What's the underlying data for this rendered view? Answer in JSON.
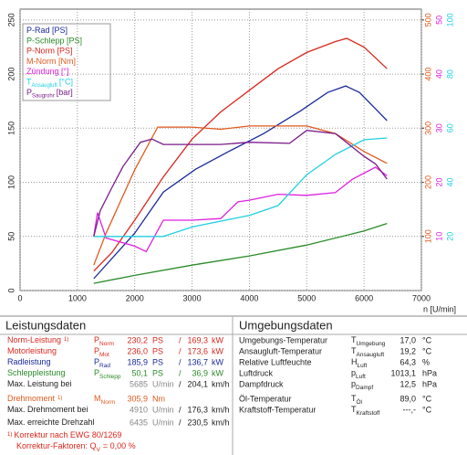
{
  "chart_data": {
    "type": "line",
    "x_label": "n [U/min]",
    "xlim": [
      0,
      7000
    ],
    "xticks": [
      0,
      1000,
      2000,
      3000,
      4000,
      5000,
      6000,
      7000
    ],
    "ylim": [
      0,
      260
    ],
    "yticks": [
      0,
      50,
      100,
      150,
      200,
      250
    ],
    "y2lim": [
      0,
      520
    ],
    "y2ticks": [
      100,
      200,
      300,
      400,
      500
    ],
    "y2color": "#e05a1e",
    "y3lim": [
      0,
      52
    ],
    "y3ticks": [
      10,
      20,
      30,
      40,
      50
    ],
    "y3color": "#e020e0",
    "y4lim": [
      0,
      104
    ],
    "y4ticks": [
      20,
      40,
      60,
      80,
      100
    ],
    "y4color": "#20d0e0",
    "y5lim": [
      0,
      2.6
    ],
    "grid": true,
    "series": [
      {
        "name": "P-Rad [PS]",
        "color": "#1a2a9a",
        "axis": "y",
        "x": [
          1285,
          2000,
          2500,
          3060,
          3620,
          4250,
          4890,
          5365,
          5680,
          5920,
          6160,
          6400
        ],
        "values": [
          11,
          53,
          91,
          112,
          128,
          145,
          166,
          183,
          189,
          183,
          170,
          157
        ]
      },
      {
        "name": "P-Schlepp [PS]",
        "color": "#2a8a2a",
        "axis": "y",
        "x": [
          1285,
          2000,
          3000,
          4000,
          5000,
          6000,
          6400
        ],
        "values": [
          6.7,
          14,
          23.5,
          32,
          42,
          55,
          62
        ]
      },
      {
        "name": "P-Norm [PS]",
        "color": "#d8281e",
        "axis": "y",
        "x": [
          1285,
          1600,
          2000,
          2500,
          3000,
          3500,
          4000,
          4500,
          5000,
          5500,
          5700,
          6000,
          6200,
          6400
        ],
        "values": [
          18,
          35,
          65,
          105,
          140,
          165,
          185,
          205,
          220,
          230,
          233,
          225,
          215,
          205
        ]
      },
      {
        "name": "M-Norm [Nm]",
        "color": "#e05a1e",
        "axis": "y2",
        "x": [
          1285,
          1500,
          2000,
          2400,
          3000,
          3500,
          4000,
          5000,
          5500,
          6000,
          6400
        ],
        "values": [
          47,
          106,
          223,
          302,
          302,
          298,
          304,
          304,
          290,
          257,
          235
        ]
      },
      {
        "name": "Zündung [°]",
        "color": "#e020e0",
        "axis": "y3",
        "x": [
          1285,
          1350,
          1500,
          2000,
          2200,
          2500,
          3000,
          3500,
          3800,
          4000,
          4500,
          5000,
          5500,
          5800,
          6200,
          6400
        ],
        "values": [
          10,
          14.4,
          9.7,
          8.2,
          7.2,
          13,
          13,
          13.3,
          16.4,
          16.7,
          17.8,
          17.6,
          18.1,
          20.6,
          22.8,
          21.2
        ]
      },
      {
        "name": "T",
        "name_sub": "Ansaugluft",
        "name_suffix": "[°C]",
        "color": "#20d0e0",
        "axis": "y4",
        "x": [
          1285,
          2500,
          3000,
          4000,
          4500,
          5000,
          5500,
          6000,
          6400
        ],
        "values": [
          20,
          20,
          23.5,
          27.8,
          31.4,
          42.8,
          50.3,
          55.7,
          56.4
        ]
      },
      {
        "name": "P",
        "name_sub": "Saugrohr",
        "name_suffix": "[bar]",
        "color": "#7a1a8a",
        "axis": "y5",
        "x": [
          1285,
          1400,
          1600,
          1800,
          2100,
          2300,
          2500,
          3500,
          4000,
          4700,
          5000,
          5500,
          6000,
          6200,
          6400
        ],
        "values": [
          0.5,
          0.74,
          0.95,
          1.15,
          1.37,
          1.4,
          1.35,
          1.35,
          1.37,
          1.36,
          1.48,
          1.45,
          1.24,
          1.17,
          1.03
        ]
      }
    ]
  },
  "left_table": {
    "title": "Leistungsdaten",
    "rows": [
      {
        "label": "Norm-Leistung",
        "note": "1)",
        "color": "#d8281e",
        "symbol": {
          "main": "P",
          "sub": "Norm"
        },
        "value": "230,2",
        "unit": "PS",
        "sep": "/",
        "value2": "169,3",
        "unit2": "kW"
      },
      {
        "label": "Motorleistung",
        "color": "#d8281e",
        "symbol": {
          "main": "P",
          "sub": "Mot"
        },
        "value": "236,0",
        "unit": "PS",
        "sep": "/",
        "value2": "173,6",
        "unit2": "kW"
      },
      {
        "label": "Radleistung",
        "color": "#1a2a9a",
        "symbol": {
          "main": "P",
          "sub": "Rad"
        },
        "value": "185,9",
        "unit": "PS",
        "sep": "/",
        "value2": "136,7",
        "unit2": "kW"
      },
      {
        "label": "Schleppleistung",
        "color": "#2a8a2a",
        "symbol": {
          "main": "P",
          "sub": "Schlepp"
        },
        "value": "50,1",
        "unit": "PS",
        "sep": "/",
        "value2": "36,9",
        "unit2": "kW"
      },
      {
        "label": "Max. Leistung bei",
        "color": "#222",
        "value": "5685",
        "unit": "U/min",
        "sep": "/",
        "value2": "204,1",
        "unit2": "km/h"
      },
      {
        "label": "Drehmoment",
        "note": "1)",
        "color": "#e05a1e",
        "symbol": {
          "main": "M",
          "sub": "Norm"
        },
        "value": "305,9",
        "unit": "Nm"
      },
      {
        "label": "Max. Drehmoment bei",
        "color": "#222",
        "value": "4910",
        "unit": "U/min",
        "sep": "/",
        "value2": "176,3",
        "unit2": "km/h"
      },
      {
        "label": "Max. erreichte Drehzahl",
        "color": "#222",
        "value": "6435",
        "unit": "U/min",
        "sep": "/",
        "value2": "230,5",
        "unit2": "km/h"
      }
    ],
    "footer": [
      {
        "note": "1)",
        "text": "Korrektur nach EWG 80/1269"
      },
      {
        "text": "Korrektur-Faktoren: Q",
        "sub": "V",
        "rest": "=  0,00 %"
      }
    ]
  },
  "right_table": {
    "title": "Umgebungsdaten",
    "rows": [
      {
        "label": "Umgebungs-Temperatur",
        "symbol": {
          "main": "T",
          "sub": "Umgebung"
        },
        "value": "17,0",
        "unit": "°C"
      },
      {
        "label": "Ansaugluft-Temperatur",
        "symbol": {
          "main": "T",
          "sub": "Ansaugluft"
        },
        "value": "19,2",
        "unit": "°C"
      },
      {
        "label": "Relative Luftfeuchte",
        "symbol": {
          "main": "H",
          "sub": "Luft"
        },
        "value": "64,3",
        "unit": "%"
      },
      {
        "label": "Luftdruck",
        "symbol": {
          "main": "p",
          "sub": "Luft"
        },
        "value": "1013,1",
        "unit": "hPa"
      },
      {
        "label": "Dampfdruck",
        "symbol": {
          "main": "p",
          "sub": "Dampf"
        },
        "value": "12,5",
        "unit": "hPa"
      },
      {
        "label": "Öl-Temperatur",
        "symbol": {
          "main": "T",
          "sub": "Öl"
        },
        "value": "89,0",
        "unit": "°C"
      },
      {
        "label": "Kraftstoff-Temperatur",
        "symbol": {
          "main": "T",
          "sub": "Kraftstoff"
        },
        "value": "---,-",
        "unit": "°C"
      }
    ]
  }
}
